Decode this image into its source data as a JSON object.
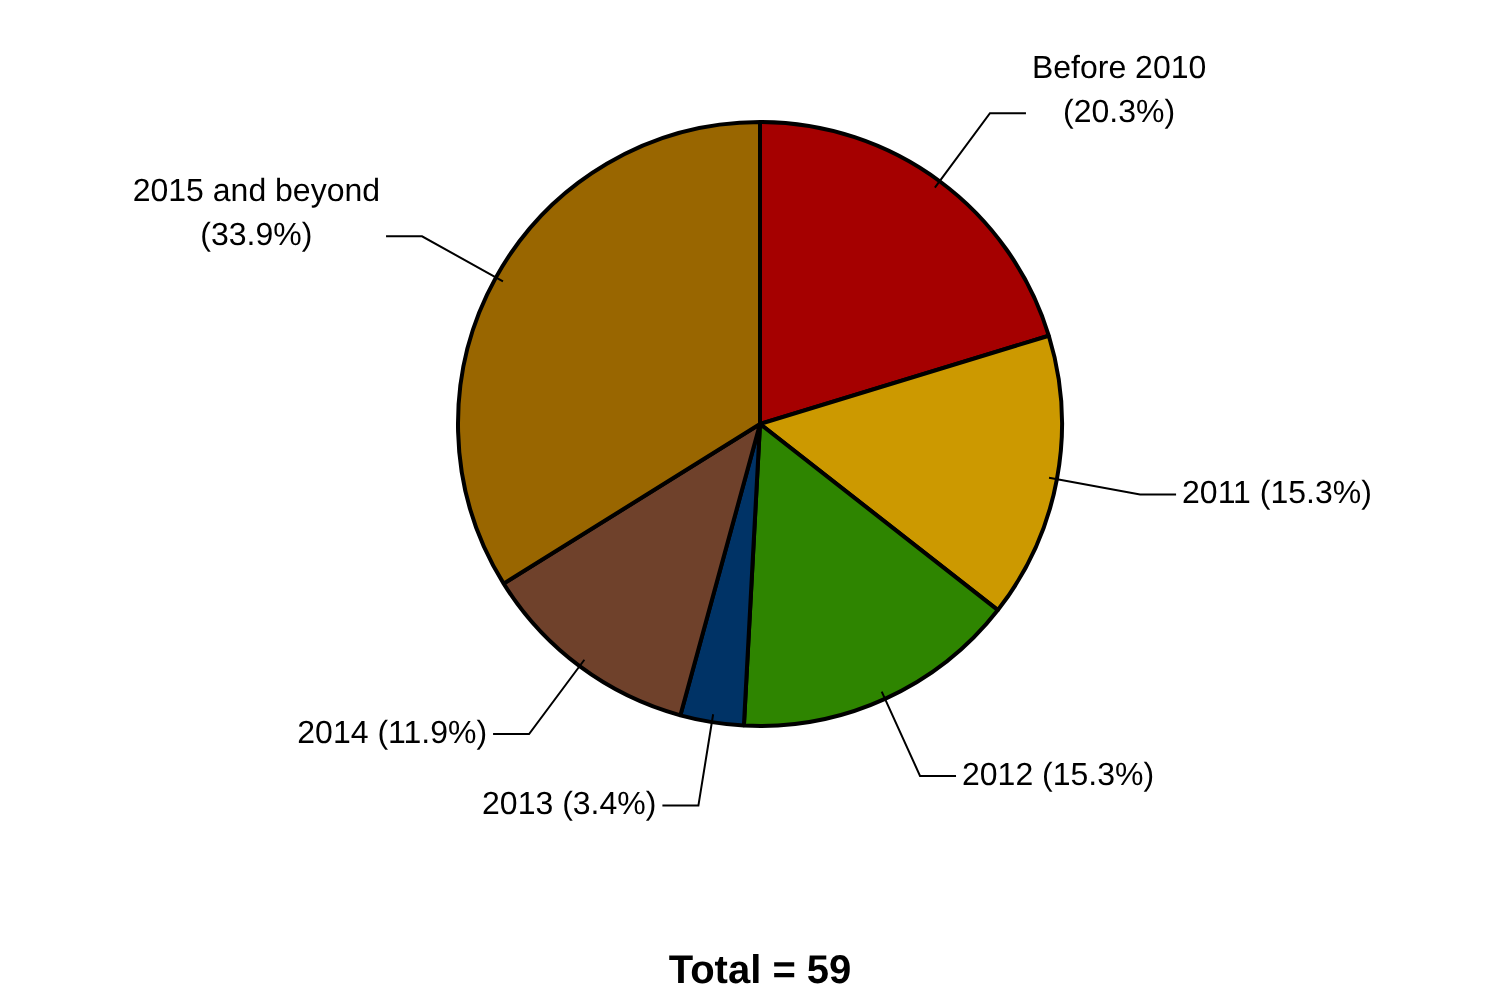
{
  "chart_data": {
    "type": "pie",
    "categories": [
      "Before 2010",
      "2011",
      "2012",
      "2013",
      "2014",
      "2015 and beyond"
    ],
    "values": [
      20.3,
      15.3,
      15.3,
      3.4,
      11.9,
      33.9
    ],
    "value_labels": [
      "(20.3%)",
      "(15.3%)",
      "(15.3%)",
      "(3.4%)",
      "(11.9%)",
      "(33.9%)"
    ],
    "colors": [
      "#a50000",
      "#cc9900",
      "#2e8500",
      "#003366",
      "#6f412b",
      "#996600"
    ],
    "annotations": [
      "Total = 59"
    ],
    "legend": false
  }
}
